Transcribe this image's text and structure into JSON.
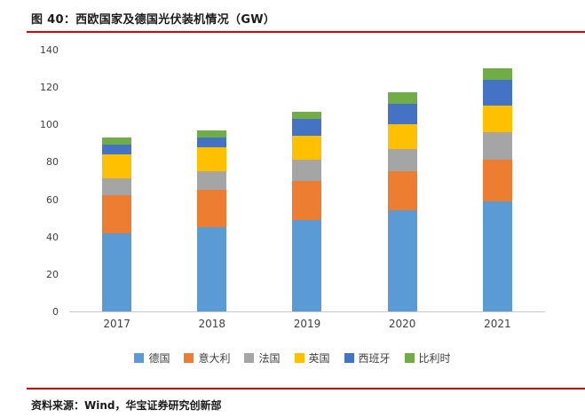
{
  "title": "图 40：西欧国家及德国光伏装机情况（GW）",
  "source": "资料来源：Wind，华宝证券研究创新部",
  "colors": {
    "accent_red": "#E60000",
    "axis_line": "#C9C9C9",
    "axis_text": "#404040"
  },
  "chart_data": {
    "type": "bar",
    "stacked": true,
    "title": "图 40：西欧国家及德国光伏装机情况（GW）",
    "categories": [
      "2017",
      "2018",
      "2019",
      "2020",
      "2021"
    ],
    "series": [
      {
        "name": "德国",
        "color": "#5B9BD5",
        "values": [
          42,
          45,
          49,
          54,
          59
        ]
      },
      {
        "name": "意大利",
        "color": "#ED7D31",
        "values": [
          20,
          20,
          21,
          21,
          22
        ]
      },
      {
        "name": "法国",
        "color": "#A5A5A5",
        "values": [
          9,
          10,
          11,
          12,
          15
        ]
      },
      {
        "name": "英国",
        "color": "#FFC000",
        "values": [
          13,
          13,
          13,
          13,
          14
        ]
      },
      {
        "name": "西班牙",
        "color": "#4472C4",
        "values": [
          5,
          5,
          9,
          11,
          14
        ]
      },
      {
        "name": "比利时",
        "color": "#70AD47",
        "values": [
          4,
          4,
          4,
          6,
          6
        ]
      }
    ],
    "xlabel": "",
    "ylabel": "",
    "ylim": [
      0,
      140
    ],
    "ytick_step": 20,
    "grid": false,
    "legend_position": "bottom"
  }
}
